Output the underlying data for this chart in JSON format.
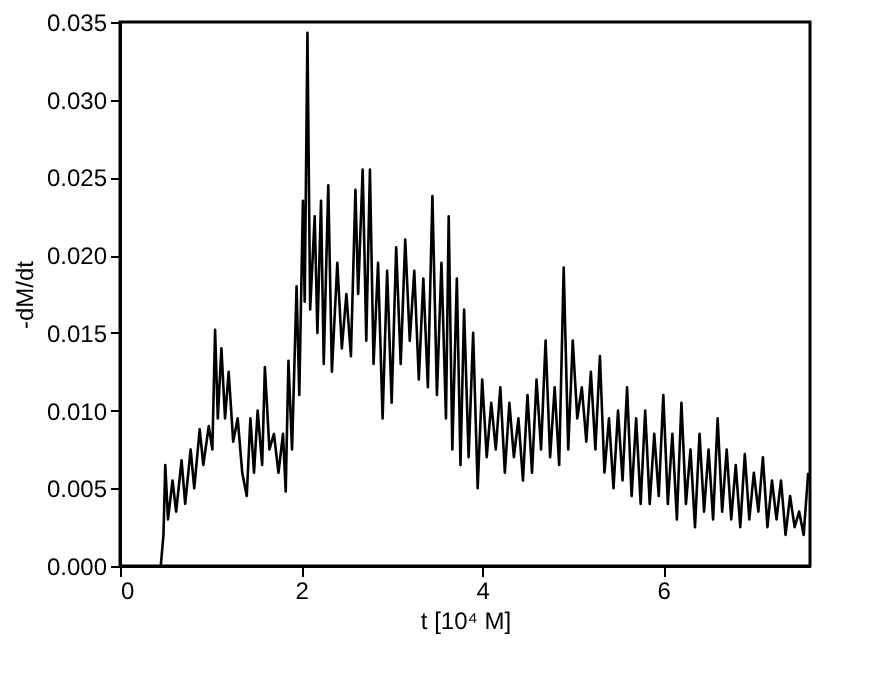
{
  "chart_data": {
    "type": "line",
    "xlabel": "t [10⁴ M]",
    "ylabel": "-dM/dt",
    "xlim": [
      0,
      7.62
    ],
    "xticks": [
      0,
      2,
      4,
      6
    ],
    "ylim": [
      0,
      0.035
    ],
    "yticks": [
      {
        "value": 0,
        "label": "0.000"
      },
      {
        "value": 0.005,
        "label": "0.005"
      },
      {
        "value": 0.01,
        "label": "0.010"
      },
      {
        "value": 0.015,
        "label": "0.015"
      },
      {
        "value": 0.02,
        "label": "0.020"
      },
      {
        "value": 0.025,
        "label": "0.025"
      },
      {
        "value": 0.03,
        "label": "0.030"
      },
      {
        "value": 0.035,
        "label": "0.035"
      }
    ],
    "grid": false,
    "marker": "none",
    "line_style": "solid",
    "series": [
      {
        "color": "#000000",
        "x": [
          0.45,
          0.48,
          0.5,
          0.53,
          0.58,
          0.62,
          0.68,
          0.72,
          0.78,
          0.82,
          0.88,
          0.92,
          0.98,
          1.02,
          1.05,
          1.08,
          1.12,
          1.16,
          1.2,
          1.25,
          1.3,
          1.35,
          1.4,
          1.44,
          1.48,
          1.52,
          1.57,
          1.6,
          1.65,
          1.7,
          1.75,
          1.8,
          1.83,
          1.86,
          1.9,
          1.95,
          1.98,
          2.02,
          2.04,
          2.07,
          2.1,
          2.15,
          2.18,
          2.22,
          2.25,
          2.3,
          2.34,
          2.4,
          2.45,
          2.5,
          2.55,
          2.6,
          2.63,
          2.68,
          2.72,
          2.76,
          2.8,
          2.85,
          2.9,
          2.95,
          3.0,
          3.05,
          3.1,
          3.15,
          3.2,
          3.25,
          3.3,
          3.35,
          3.4,
          3.45,
          3.5,
          3.55,
          3.6,
          3.63,
          3.67,
          3.72,
          3.76,
          3.8,
          3.85,
          3.9,
          3.95,
          4.0,
          4.05,
          4.1,
          4.15,
          4.2,
          4.25,
          4.3,
          4.35,
          4.4,
          4.45,
          4.5,
          4.55,
          4.6,
          4.65,
          4.7,
          4.75,
          4.8,
          4.85,
          4.9,
          4.95,
          5.0,
          5.05,
          5.1,
          5.15,
          5.2,
          5.25,
          5.3,
          5.35,
          5.4,
          5.45,
          5.5,
          5.55,
          5.6,
          5.65,
          5.7,
          5.75,
          5.8,
          5.85,
          5.9,
          5.95,
          6.0,
          6.05,
          6.1,
          6.15,
          6.2,
          6.25,
          6.3,
          6.35,
          6.4,
          6.45,
          6.5,
          6.55,
          6.6,
          6.65,
          6.7,
          6.75,
          6.8,
          6.85,
          6.9,
          6.95,
          7.0,
          7.05,
          7.1,
          7.15,
          7.2,
          7.25,
          7.3,
          7.35,
          7.4,
          7.45,
          7.5,
          7.55,
          7.6
        ],
        "values": [
          0.0,
          0.002,
          0.0065,
          0.003,
          0.0055,
          0.0035,
          0.0068,
          0.004,
          0.0075,
          0.005,
          0.0088,
          0.0065,
          0.009,
          0.0075,
          0.0152,
          0.0095,
          0.014,
          0.0095,
          0.0125,
          0.008,
          0.0095,
          0.006,
          0.0045,
          0.0095,
          0.006,
          0.01,
          0.0065,
          0.0128,
          0.0075,
          0.0085,
          0.006,
          0.0085,
          0.0048,
          0.0132,
          0.0075,
          0.018,
          0.011,
          0.0235,
          0.017,
          0.0343,
          0.0165,
          0.0225,
          0.015,
          0.0235,
          0.013,
          0.0245,
          0.0125,
          0.0195,
          0.014,
          0.0175,
          0.0135,
          0.0242,
          0.0175,
          0.0255,
          0.0145,
          0.0255,
          0.013,
          0.0195,
          0.0095,
          0.019,
          0.0105,
          0.0205,
          0.013,
          0.021,
          0.0145,
          0.019,
          0.012,
          0.0185,
          0.0115,
          0.0238,
          0.011,
          0.0195,
          0.0095,
          0.0225,
          0.0075,
          0.0185,
          0.0065,
          0.0165,
          0.007,
          0.015,
          0.005,
          0.012,
          0.007,
          0.0105,
          0.0075,
          0.0115,
          0.006,
          0.0105,
          0.007,
          0.0095,
          0.0055,
          0.011,
          0.006,
          0.012,
          0.0075,
          0.0145,
          0.007,
          0.0115,
          0.0065,
          0.0192,
          0.0075,
          0.0145,
          0.0095,
          0.0115,
          0.008,
          0.0125,
          0.0075,
          0.0135,
          0.006,
          0.0095,
          0.005,
          0.01,
          0.0055,
          0.0115,
          0.0045,
          0.0095,
          0.004,
          0.01,
          0.004,
          0.0085,
          0.0045,
          0.011,
          0.004,
          0.0085,
          0.003,
          0.0105,
          0.004,
          0.0075,
          0.0025,
          0.0085,
          0.0035,
          0.0075,
          0.003,
          0.0095,
          0.0035,
          0.0075,
          0.003,
          0.0065,
          0.0025,
          0.0072,
          0.003,
          0.006,
          0.0035,
          0.007,
          0.0025,
          0.0055,
          0.003,
          0.0055,
          0.002,
          0.0045,
          0.0025,
          0.0035,
          0.002,
          0.006
        ]
      }
    ]
  }
}
